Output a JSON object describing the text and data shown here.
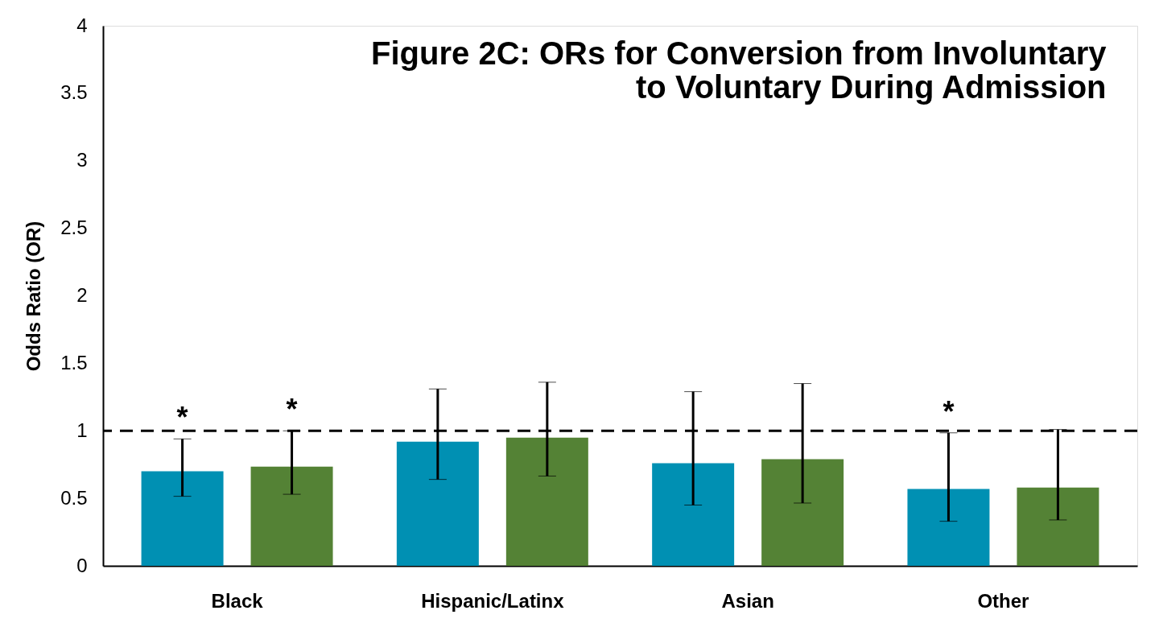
{
  "chart_data": {
    "type": "bar",
    "title": "Figure 2C: ORs for Conversion from Involuntary to Voluntary During Admission",
    "ylabel": "Odds Ratio (OR)",
    "categories": [
      "Black",
      "Hispanic/Latinx",
      "Asian",
      "Other"
    ],
    "series": [
      {
        "color": "#0090b3",
        "values": [
          0.7,
          0.92,
          0.76,
          0.57
        ],
        "errors": [
          [
            0.515,
            0.94
          ],
          [
            0.64,
            1.31
          ],
          [
            0.45,
            1.29
          ],
          [
            0.33,
            0.985
          ]
        ],
        "value_labels": [
          "*",
          null,
          null,
          "*"
        ]
      },
      {
        "color": "#548235",
        "values": [
          0.735,
          0.95,
          0.79,
          0.58
        ],
        "errors": [
          [
            0.53,
            1.0
          ],
          [
            0.665,
            1.36
          ],
          [
            0.465,
            1.35
          ],
          [
            0.34,
            1.01
          ]
        ],
        "value_labels": [
          "*",
          null,
          null,
          null
        ]
      }
    ],
    "ylim": [
      0,
      4
    ],
    "yticks": [
      0,
      0.5,
      1,
      1.5,
      2,
      2.5,
      3,
      3.5,
      4
    ],
    "ref_lines": [
      {
        "axis": "y",
        "value": 1,
        "line_style": "dashed",
        "color": "#000000"
      }
    ],
    "grid": false,
    "legend": false
  }
}
